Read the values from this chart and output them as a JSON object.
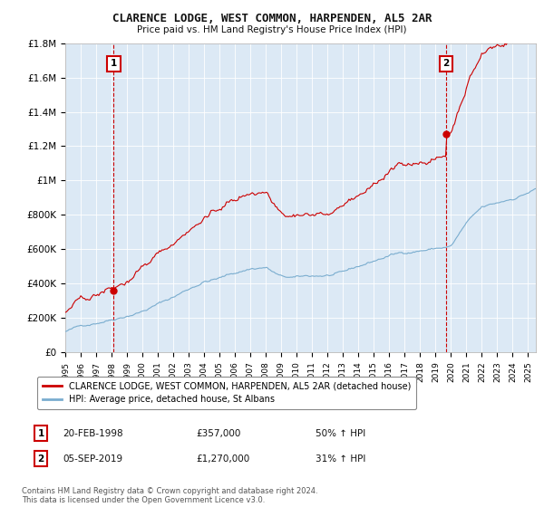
{
  "title": "CLARENCE LODGE, WEST COMMON, HARPENDEN, AL5 2AR",
  "subtitle": "Price paid vs. HM Land Registry's House Price Index (HPI)",
  "background_color": "#ffffff",
  "plot_bg_color": "#dce9f5",
  "grid_color": "#ffffff",
  "sale1_date": "20-FEB-1998",
  "sale1_price": 357000,
  "sale1_label": "1",
  "sale1_hpi_pct": "50% ↑ HPI",
  "sale1_year": 1998.13,
  "sale2_date": "05-SEP-2019",
  "sale2_price": 1270000,
  "sale2_label": "2",
  "sale2_hpi_pct": "31% ↑ HPI",
  "sale2_year": 2019.67,
  "legend_line1": "CLARENCE LODGE, WEST COMMON, HARPENDEN, AL5 2AR (detached house)",
  "legend_line2": "HPI: Average price, detached house, St Albans",
  "footer": "Contains HM Land Registry data © Crown copyright and database right 2024.\nThis data is licensed under the Open Government Licence v3.0.",
  "red_color": "#cc0000",
  "blue_color": "#7aadcf",
  "box_color": "#cc0000",
  "ylim": [
    0,
    1800000
  ],
  "yticks": [
    0,
    200000,
    400000,
    600000,
    800000,
    1000000,
    1200000,
    1400000,
    1600000,
    1800000
  ],
  "ytick_labels": [
    "£0",
    "£200K",
    "£400K",
    "£600K",
    "£800K",
    "£1M",
    "£1.2M",
    "£1.4M",
    "£1.6M",
    "£1.8M"
  ],
  "xlim_start": 1995.0,
  "xlim_end": 2025.5,
  "xtick_years": [
    1995,
    1996,
    1997,
    1998,
    1999,
    2000,
    2001,
    2002,
    2003,
    2004,
    2005,
    2006,
    2007,
    2008,
    2009,
    2010,
    2011,
    2012,
    2013,
    2014,
    2015,
    2016,
    2017,
    2018,
    2019,
    2020,
    2021,
    2022,
    2023,
    2024,
    2025
  ]
}
